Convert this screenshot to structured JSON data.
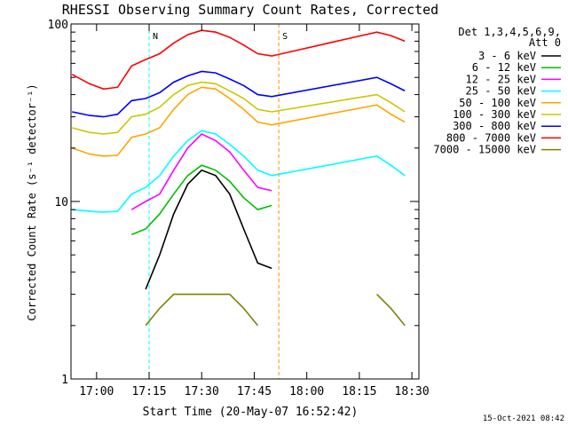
{
  "chart_data": {
    "type": "line",
    "title": "RHESSI Observing Summary Count Rates, Corrected",
    "xlabel": "Start Time (20-May-07 16:52:42)",
    "ylabel": "Corrected Count Rate (s⁻¹ detector⁻¹)",
    "yscale": "log",
    "ylim": [
      1,
      100
    ],
    "xlim": [
      "16:52:42",
      "18:32:00"
    ],
    "x_ticks": [
      "17:00",
      "17:15",
      "17:30",
      "17:45",
      "18:00",
      "18:15",
      "18:30"
    ],
    "y_ticks": [
      "1",
      "10",
      "100"
    ],
    "detector_info": [
      "Det 1,3,4,5,6,9,",
      "Att 0"
    ],
    "timestamp": "15-Oct-2021 08:42",
    "annotations": [
      {
        "label": "N",
        "x": "17:15",
        "color": "#00ffff"
      },
      {
        "label": "S",
        "x": "17:52",
        "color": "#ff8c00"
      }
    ],
    "x": [
      "16:53",
      "16:58",
      "17:02",
      "17:06",
      "17:10",
      "17:14",
      "17:18",
      "17:22",
      "17:26",
      "17:30",
      "17:34",
      "17:38",
      "17:42",
      "17:46",
      "17:50",
      "18:20",
      "18:24",
      "18:28"
    ],
    "series": [
      {
        "name": "3 - 6 keV",
        "color": "#000000",
        "values": [
          null,
          null,
          null,
          null,
          null,
          3.2,
          5.0,
          8.5,
          12.5,
          15.0,
          14.0,
          11.0,
          7.0,
          4.5,
          4.2,
          null,
          null,
          null
        ]
      },
      {
        "name": "6 - 12 keV",
        "color": "#00c000",
        "values": [
          null,
          null,
          null,
          null,
          6.5,
          7.0,
          8.5,
          11.0,
          14.0,
          16.0,
          15.0,
          13.0,
          10.5,
          9.0,
          9.5,
          null,
          null,
          null
        ]
      },
      {
        "name": "12 - 25 keV",
        "color": "#ff00ff",
        "values": [
          null,
          null,
          null,
          null,
          9.0,
          10.0,
          11.0,
          15.0,
          20.0,
          24.0,
          22.0,
          19.0,
          15.0,
          12.0,
          11.5,
          null,
          null,
          null
        ]
      },
      {
        "name": "25 - 50 keV",
        "color": "#00ffff",
        "values": [
          9.0,
          8.8,
          8.7,
          8.8,
          11.0,
          12.0,
          14.0,
          18.0,
          22.0,
          25.0,
          24.0,
          21.0,
          18.0,
          15.0,
          14.0,
          18.0,
          16.0,
          14.0
        ]
      },
      {
        "name": "50 - 100 keV",
        "color": "#ffa500",
        "values": [
          20.0,
          18.5,
          18.0,
          18.2,
          23.0,
          24.0,
          26.0,
          33.0,
          40.0,
          44.0,
          43.0,
          38.0,
          33.0,
          28.0,
          27.0,
          35.0,
          31.0,
          28.0
        ]
      },
      {
        "name": "100 - 300 keV",
        "color": "#c8c800",
        "values": [
          26.0,
          24.5,
          24.0,
          24.5,
          30.0,
          31.0,
          34.0,
          40.0,
          45.0,
          47.0,
          46.0,
          42.0,
          38.0,
          33.0,
          32.0,
          40.0,
          36.0,
          32.0
        ]
      },
      {
        "name": "300 - 800 keV",
        "color": "#0000ff",
        "values": [
          32.0,
          30.5,
          30.0,
          31.0,
          37.0,
          38.0,
          41.0,
          47.0,
          51.0,
          54.0,
          53.0,
          49.0,
          45.0,
          40.0,
          39.0,
          50.0,
          46.0,
          42.0
        ]
      },
      {
        "name": "800 - 7000 keV",
        "color": "#ff0000",
        "values": [
          52.0,
          46.0,
          43.0,
          44.0,
          58.0,
          63.0,
          68.0,
          78.0,
          87.0,
          92.0,
          90.0,
          84.0,
          76.0,
          68.0,
          66.0,
          90.0,
          86.0,
          80.0
        ]
      },
      {
        "name": "7000 - 15000 keV",
        "color": "#808000",
        "values": [
          null,
          null,
          null,
          null,
          null,
          2.0,
          2.5,
          3.0,
          3.0,
          3.0,
          3.0,
          3.0,
          2.5,
          2.0,
          null,
          3.0,
          2.5,
          2.0
        ]
      }
    ]
  }
}
